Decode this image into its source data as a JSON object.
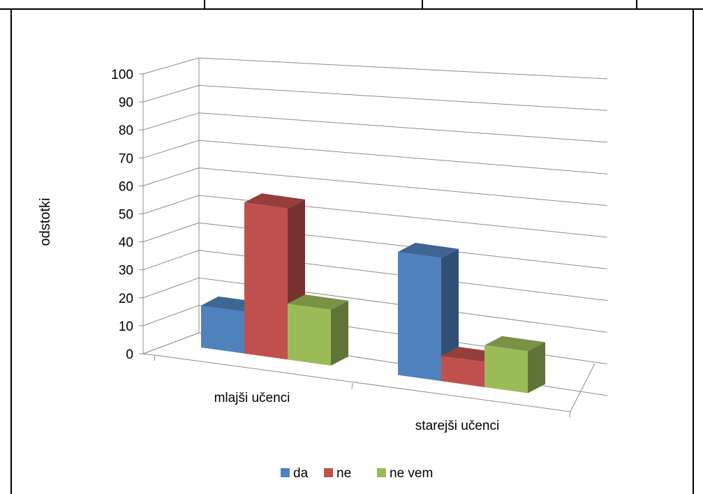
{
  "chart_data": {
    "type": "bar",
    "style": "3d-clustered-column",
    "categories": [
      "mlajši učenci",
      "starejši učenci"
    ],
    "series": [
      {
        "name": "da",
        "color": "#4F81BD",
        "values": [
          15,
          44
        ]
      },
      {
        "name": "ne",
        "color": "#C0504D",
        "values": [
          54,
          9
        ]
      },
      {
        "name": "ne vem",
        "color": "#9BBB59",
        "values": [
          20,
          15
        ]
      }
    ],
    "ylabel": "odstotki",
    "xlabel": "",
    "title": "",
    "ylim": [
      0,
      100
    ],
    "ytick_step": 10,
    "yticks": [
      "0",
      "10",
      "20",
      "30",
      "40",
      "50",
      "60",
      "70",
      "80",
      "90",
      "100"
    ],
    "grid": true,
    "legend_position": "bottom"
  }
}
